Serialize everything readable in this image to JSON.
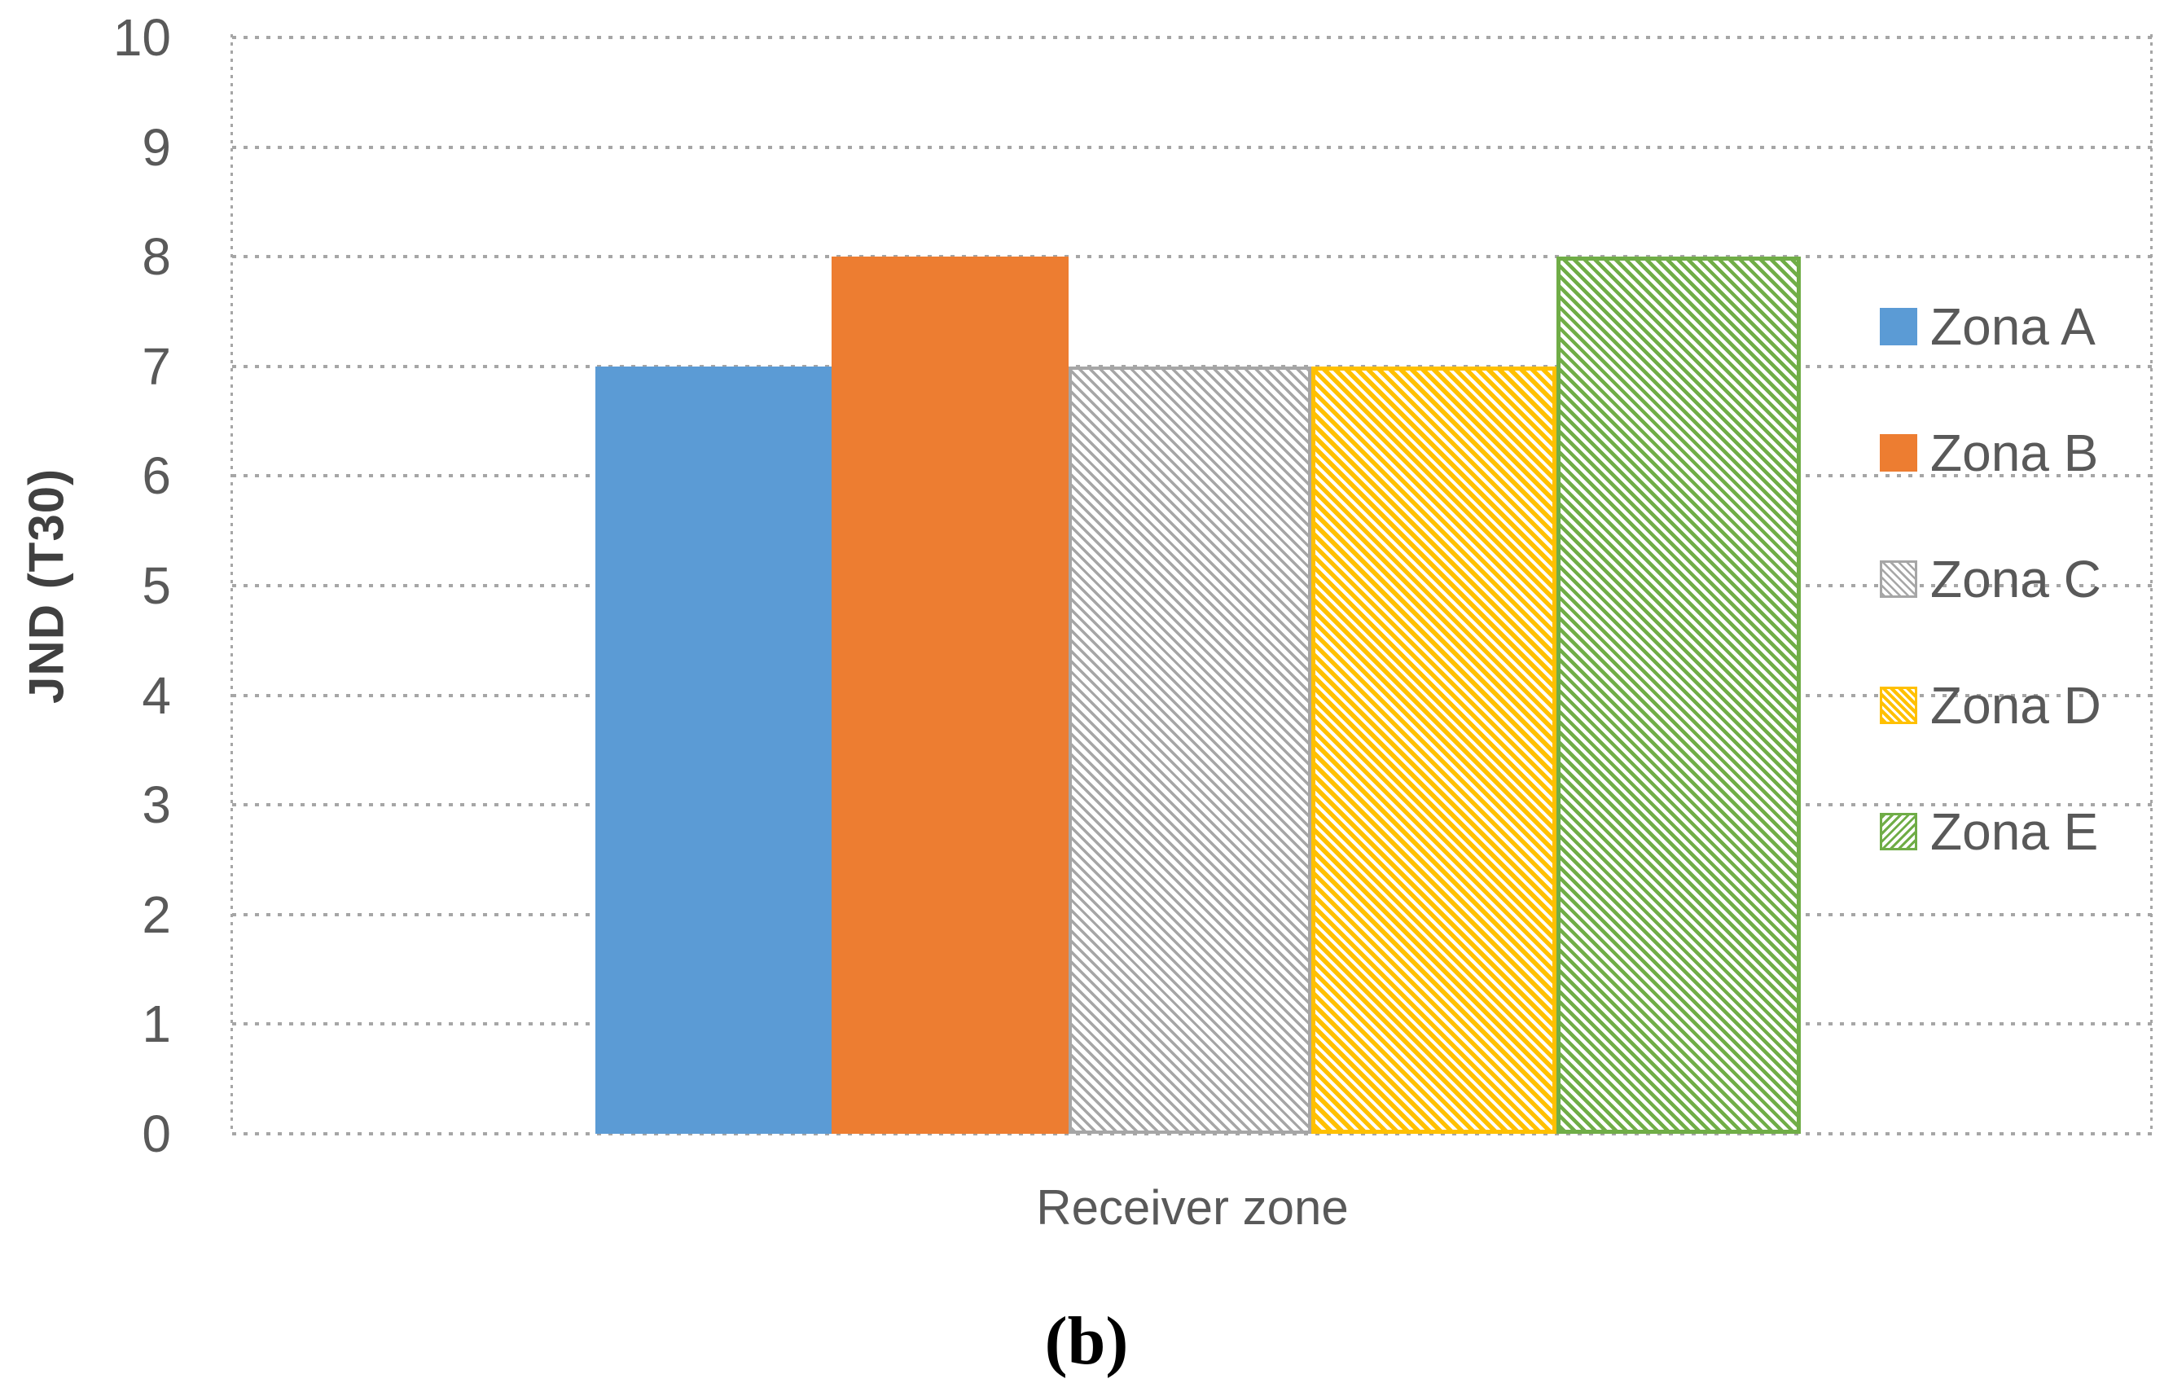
{
  "figure": {
    "caption": "(b)"
  },
  "chart_data": {
    "type": "bar",
    "title": "",
    "xlabel": "Receiver zone",
    "ylabel": "JND (T30)",
    "ylim": [
      0,
      10
    ],
    "ytick_step": 1,
    "grid": "horizontal-dotted",
    "legend_position": "right",
    "categories": [
      "Receiver zone"
    ],
    "series": [
      {
        "name": "Zona A",
        "value": 7,
        "color": "#5B9BD5",
        "fill": "solid",
        "swatch_hatch_angle": 45
      },
      {
        "name": "Zona B",
        "value": 8,
        "color": "#ED7D31",
        "fill": "solid",
        "swatch_hatch_angle": 45
      },
      {
        "name": "Zona C",
        "value": 7,
        "color": "#A6A6A6",
        "fill": "thin-diagonal-hatch",
        "swatch_hatch_angle": 45
      },
      {
        "name": "Zona D",
        "value": 7,
        "color": "#FFC000",
        "fill": "thick-diagonal-hatch",
        "swatch_hatch_angle": 45
      },
      {
        "name": "Zona E",
        "value": 8,
        "color": "#70AD47",
        "fill": "diagonal-hatch",
        "swatch_hatch_angle": 135
      }
    ]
  },
  "colors": {
    "axis_text": "#595959",
    "axis_title_text": "#404040",
    "gridline": "#A6A6A6",
    "background": "#FFFFFF"
  }
}
